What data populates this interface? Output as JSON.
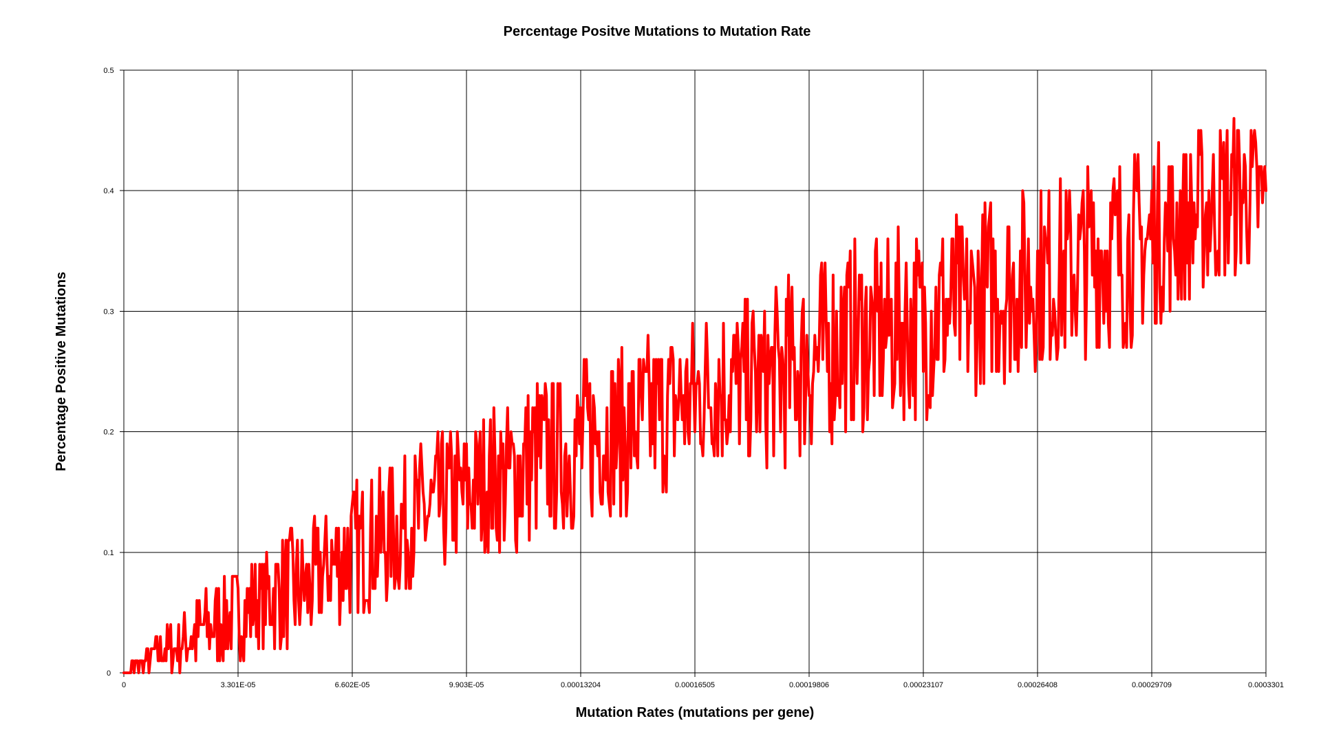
{
  "chart_data": {
    "type": "line",
    "title": "Percentage Positve Mutations to Mutation Rate",
    "xlabel": "Mutation Rates (mutations per gene)",
    "ylabel": "Percentage Positive Mutations",
    "xlim": [
      0,
      0.0003301
    ],
    "ylim": [
      0,
      0.5
    ],
    "grid": true,
    "legend": "none",
    "x_ticks": [
      {
        "value": 0,
        "label": "0"
      },
      {
        "value": 3.301e-05,
        "label": "3.301E-05"
      },
      {
        "value": 6.602e-05,
        "label": "6.602E-05"
      },
      {
        "value": 9.903e-05,
        "label": "9.903E-05"
      },
      {
        "value": 0.00013204,
        "label": "0.00013204"
      },
      {
        "value": 0.00016505,
        "label": "0.00016505"
      },
      {
        "value": 0.00019806,
        "label": "0.00019806"
      },
      {
        "value": 0.00023107,
        "label": "0.00023107"
      },
      {
        "value": 0.00026408,
        "label": "0.00026408"
      },
      {
        "value": 0.00029709,
        "label": "0.00029709"
      },
      {
        "value": 0.0003301,
        "label": "0.0003301"
      }
    ],
    "y_ticks": [
      {
        "value": 0,
        "label": "0"
      },
      {
        "value": 0.1,
        "label": "0.1"
      },
      {
        "value": 0.2,
        "label": "0.2"
      },
      {
        "value": 0.3,
        "label": "0.3"
      },
      {
        "value": 0.4,
        "label": "0.4"
      },
      {
        "value": 0.5,
        "label": "0.5"
      }
    ],
    "series": [
      {
        "color": "#ff0000",
        "x": [
          0,
          6.6e-06,
          1.3e-05,
          1.98e-05,
          2.64e-05,
          3.3e-05,
          3.96e-05,
          4.62e-05,
          5.28e-05,
          5.94e-05,
          6.6e-05,
          7.26e-05,
          7.92e-05,
          8.58e-05,
          9.24e-05,
          9.9e-05,
          0.0001056,
          0.0001122,
          0.0001188,
          0.0001254,
          0.000132,
          0.0001386,
          0.0001452,
          0.0001518,
          0.0001584,
          0.000165,
          0.0001716,
          0.0001782,
          0.0001848,
          0.0001914,
          0.000198,
          0.0002046,
          0.0002112,
          0.0002178,
          0.0002244,
          0.000231,
          0.0002376,
          0.0002442,
          0.0002508,
          0.0002574,
          0.000264,
          0.0002706,
          0.0002772,
          0.0002838,
          0.0002904,
          0.000297,
          0.0003036,
          0.0003102,
          0.0003168,
          0.0003234,
          0.0003301
        ],
        "y": [
          0,
          0.01,
          0.02,
          0.03,
          0.04,
          0.05,
          0.06,
          0.07,
          0.07,
          0.09,
          0.1,
          0.11,
          0.12,
          0.13,
          0.14,
          0.15,
          0.16,
          0.16,
          0.18,
          0.18,
          0.19,
          0.2,
          0.2,
          0.21,
          0.22,
          0.23,
          0.24,
          0.24,
          0.24,
          0.25,
          0.26,
          0.27,
          0.28,
          0.28,
          0.29,
          0.29,
          0.3,
          0.3,
          0.32,
          0.32,
          0.33,
          0.33,
          0.34,
          0.35,
          0.35,
          0.36,
          0.37,
          0.38,
          0.39,
          0.4,
          0.39
        ],
        "spread": [
          0,
          0.01,
          0.02,
          0.03,
          0.04,
          0.04,
          0.04,
          0.05,
          0.05,
          0.05,
          0.06,
          0.06,
          0.06,
          0.06,
          0.06,
          0.06,
          0.06,
          0.07,
          0.07,
          0.07,
          0.07,
          0.07,
          0.07,
          0.07,
          0.07,
          0.07,
          0.07,
          0.07,
          0.07,
          0.08,
          0.08,
          0.08,
          0.08,
          0.08,
          0.08,
          0.08,
          0.08,
          0.08,
          0.08,
          0.08,
          0.08,
          0.08,
          0.08,
          0.08,
          0.08,
          0.08,
          0.07,
          0.07,
          0.07,
          0.07,
          0.06
        ]
      }
    ]
  }
}
